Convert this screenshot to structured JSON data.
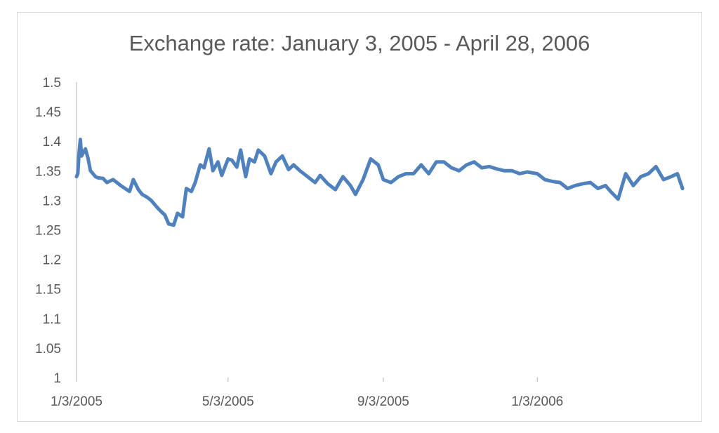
{
  "chart_data": {
    "type": "line",
    "title": "Exchange rate: January 3, 2005 - April 28, 2006",
    "xlabel": "",
    "ylabel": "",
    "ylim": [
      1,
      1.5
    ],
    "yticks": [
      "1",
      "1.05",
      "1.1",
      "1.15",
      "1.2",
      "1.25",
      "1.3",
      "1.35",
      "1.4",
      "1.45",
      "1.5"
    ],
    "xlim": [
      "2005-01-03",
      "2006-04-28"
    ],
    "xticks": [
      {
        "label": "1/3/2005",
        "date": "2005-01-03"
      },
      {
        "label": "5/3/2005",
        "date": "2005-05-03"
      },
      {
        "label": "9/3/2005",
        "date": "2005-09-03"
      },
      {
        "label": "1/3/2006",
        "date": "2006-01-03"
      }
    ],
    "grid": false,
    "legend": "none",
    "line_color": "#4f81bd",
    "series": [
      {
        "x": [
          "2005-01-03",
          "2005-01-04",
          "2005-01-05",
          "2005-01-06",
          "2005-01-07",
          "2005-01-10",
          "2005-01-12",
          "2005-01-14",
          "2005-01-18",
          "2005-01-20",
          "2005-01-24",
          "2005-01-27",
          "2005-02-01",
          "2005-02-07",
          "2005-02-14",
          "2005-02-17",
          "2005-02-21",
          "2005-02-24",
          "2005-02-28",
          "2005-03-03",
          "2005-03-07",
          "2005-03-10",
          "2005-03-14",
          "2005-03-17",
          "2005-03-21",
          "2005-03-24",
          "2005-03-28",
          "2005-03-31",
          "2005-04-04",
          "2005-04-07",
          "2005-04-11",
          "2005-04-14",
          "2005-04-18",
          "2005-04-21",
          "2005-04-25",
          "2005-04-28",
          "2005-05-03",
          "2005-05-06",
          "2005-05-10",
          "2005-05-13",
          "2005-05-17",
          "2005-05-20",
          "2005-05-24",
          "2005-05-27",
          "2005-06-01",
          "2005-06-06",
          "2005-06-10",
          "2005-06-15",
          "2005-06-20",
          "2005-06-24",
          "2005-06-29",
          "2005-07-05",
          "2005-07-11",
          "2005-07-15",
          "2005-07-21",
          "2005-07-27",
          "2005-08-02",
          "2005-08-08",
          "2005-08-12",
          "2005-08-18",
          "2005-08-24",
          "2005-08-30",
          "2005-09-03",
          "2005-09-09",
          "2005-09-15",
          "2005-09-21",
          "2005-09-27",
          "2005-10-03",
          "2005-10-09",
          "2005-10-15",
          "2005-10-21",
          "2005-10-27",
          "2005-11-02",
          "2005-11-08",
          "2005-11-14",
          "2005-11-20",
          "2005-11-26",
          "2005-12-02",
          "2005-12-08",
          "2005-12-14",
          "2005-12-20",
          "2005-12-26",
          "2006-01-03",
          "2006-01-09",
          "2006-01-15",
          "2006-01-21",
          "2006-01-27",
          "2006-02-02",
          "2006-02-08",
          "2006-02-14",
          "2006-02-20",
          "2006-02-26",
          "2006-03-02",
          "2006-03-08",
          "2006-03-14",
          "2006-03-20",
          "2006-03-26",
          "2006-04-01",
          "2006-04-07",
          "2006-04-13",
          "2006-04-19",
          "2006-04-24",
          "2006-04-28"
        ],
        "y": [
          1.34,
          1.345,
          1.38,
          1.403,
          1.375,
          1.387,
          1.372,
          1.35,
          1.34,
          1.338,
          1.337,
          1.33,
          1.335,
          1.325,
          1.315,
          1.335,
          1.318,
          1.31,
          1.305,
          1.3,
          1.29,
          1.283,
          1.275,
          1.26,
          1.258,
          1.278,
          1.272,
          1.32,
          1.315,
          1.33,
          1.36,
          1.355,
          1.387,
          1.35,
          1.365,
          1.342,
          1.37,
          1.368,
          1.356,
          1.385,
          1.34,
          1.37,
          1.365,
          1.385,
          1.375,
          1.345,
          1.365,
          1.375,
          1.352,
          1.36,
          1.35,
          1.34,
          1.33,
          1.342,
          1.328,
          1.318,
          1.34,
          1.325,
          1.31,
          1.335,
          1.37,
          1.36,
          1.335,
          1.33,
          1.34,
          1.345,
          1.345,
          1.36,
          1.345,
          1.365,
          1.365,
          1.355,
          1.35,
          1.36,
          1.365,
          1.355,
          1.357,
          1.353,
          1.35,
          1.35,
          1.345,
          1.348,
          1.345,
          1.335,
          1.332,
          1.33,
          1.32,
          1.325,
          1.328,
          1.33,
          1.32,
          1.325,
          1.315,
          1.302,
          1.345,
          1.325,
          1.34,
          1.345,
          1.357,
          1.335,
          1.34,
          1.345,
          1.32
        ]
      }
    ]
  }
}
